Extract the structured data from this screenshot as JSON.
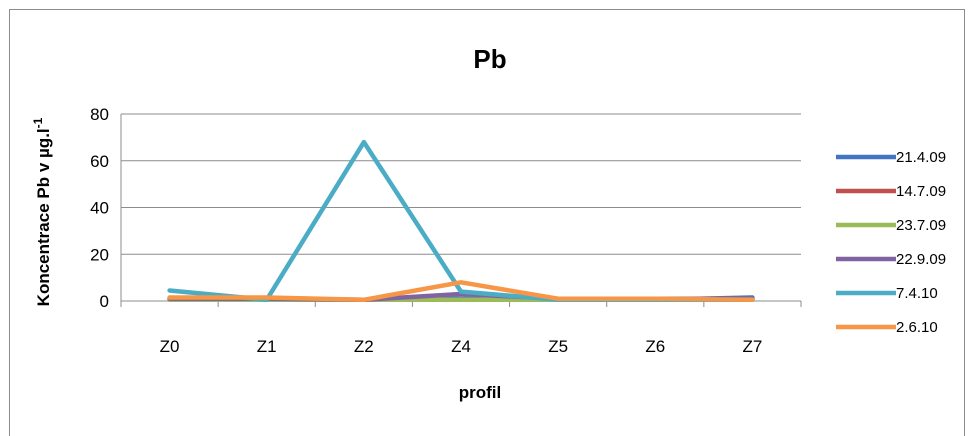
{
  "chart_data": {
    "type": "line",
    "title": "Pb",
    "xlabel": "profil",
    "ylabel": "Koncentrace Pb v µg.l",
    "ylabel_sup": "-1",
    "categories": [
      "Z0",
      "Z1",
      "Z2",
      "Z4",
      "Z5",
      "Z6",
      "Z7"
    ],
    "ylim": [
      0,
      80
    ],
    "yticks": [
      "0",
      "20",
      "40",
      "60",
      "80"
    ],
    "grid": true,
    "legend_position": "right",
    "series": [
      {
        "name": "21.4.09",
        "color": "#4472C4",
        "values": [
          1,
          0.5,
          0.5,
          1,
          0.5,
          0.5,
          1.5
        ]
      },
      {
        "name": "14.7.09",
        "color": "#C0504D",
        "values": [
          0.5,
          0.5,
          0.5,
          0.5,
          0.5,
          0.5,
          0.5
        ]
      },
      {
        "name": "23.7.09",
        "color": "#9BBB59",
        "values": [
          0.5,
          0.5,
          0.5,
          0.5,
          0.5,
          0.5,
          0.5
        ]
      },
      {
        "name": "22.9.09",
        "color": "#8064A2",
        "values": [
          1,
          1,
          0.5,
          3,
          1,
          1,
          1
        ]
      },
      {
        "name": "7.4.10",
        "color": "#4BACC6",
        "values": [
          4.5,
          0.5,
          68,
          4,
          0.5,
          0.5,
          0.5
        ]
      },
      {
        "name": "2.6.10",
        "color": "#F79646",
        "values": [
          1.5,
          1.5,
          0.5,
          8,
          1,
          1,
          0.5
        ]
      }
    ]
  }
}
